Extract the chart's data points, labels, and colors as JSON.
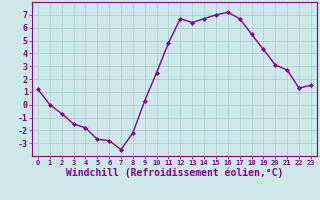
{
  "x": [
    0,
    1,
    2,
    3,
    4,
    5,
    6,
    7,
    8,
    9,
    10,
    11,
    12,
    13,
    14,
    15,
    16,
    17,
    18,
    19,
    20,
    21,
    22,
    23
  ],
  "y": [
    1.2,
    0.0,
    -0.7,
    -1.5,
    -1.8,
    -2.7,
    -2.8,
    -3.5,
    -2.2,
    0.3,
    2.5,
    4.8,
    6.7,
    6.4,
    6.7,
    7.0,
    7.2,
    6.7,
    5.5,
    4.3,
    3.1,
    2.7,
    1.3,
    1.5
  ],
  "line_color": "#880088",
  "marker": "D",
  "marker_size": 2.0,
  "line_width": 1.0,
  "bg_color": "#cce8e8",
  "grid_color": "#aacccc",
  "xlabel": "Windchill (Refroidissement éolien,°C)",
  "xlabel_fontsize": 7,
  "tick_fontsize": 6,
  "ylim": [
    -4,
    8
  ],
  "xlim": [
    -0.5,
    23.5
  ],
  "yticks": [
    -3,
    -2,
    -1,
    0,
    1,
    2,
    3,
    4,
    5,
    6,
    7
  ],
  "xticks": [
    0,
    1,
    2,
    3,
    4,
    5,
    6,
    7,
    8,
    9,
    10,
    11,
    12,
    13,
    14,
    15,
    16,
    17,
    18,
    19,
    20,
    21,
    22,
    23
  ]
}
